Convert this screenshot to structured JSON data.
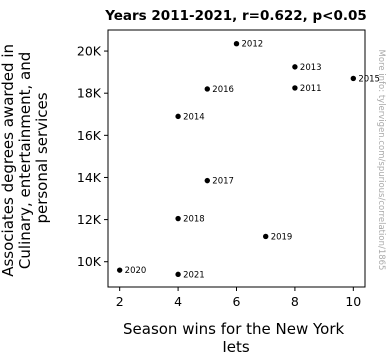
{
  "chart_data": {
    "type": "scatter",
    "title": "Years 2011-2021, r=0.622, p<0.05",
    "xlabel": "Season wins for the New York Jets",
    "ylabel": "Associates degrees awarded in Culinary, entertainment, and personal services",
    "xlim": [
      1.6,
      10.4
    ],
    "ylim": [
      8800,
      21000
    ],
    "xticks": [
      2,
      4,
      6,
      8,
      10
    ],
    "yticks": [
      10000,
      12000,
      14000,
      16000,
      18000,
      20000
    ],
    "ytick_labels": [
      "10K",
      "12K",
      "14K",
      "16K",
      "18K",
      "20K"
    ],
    "grid": false,
    "points": [
      {
        "x": 8,
        "y": 18250,
        "label": "2011"
      },
      {
        "x": 6,
        "y": 20350,
        "label": "2012"
      },
      {
        "x": 8,
        "y": 19250,
        "label": "2013"
      },
      {
        "x": 4,
        "y": 16900,
        "label": "2014"
      },
      {
        "x": 10,
        "y": 18700,
        "label": "2015"
      },
      {
        "x": 5,
        "y": 18200,
        "label": "2016"
      },
      {
        "x": 5,
        "y": 13850,
        "label": "2017"
      },
      {
        "x": 4,
        "y": 12050,
        "label": "2018"
      },
      {
        "x": 7,
        "y": 11200,
        "label": "2019"
      },
      {
        "x": 2,
        "y": 9600,
        "label": "2020"
      },
      {
        "x": 4,
        "y": 9400,
        "label": "2021"
      }
    ]
  },
  "side_note": "More info: tylervigen.com/spurious/correlation/1865"
}
